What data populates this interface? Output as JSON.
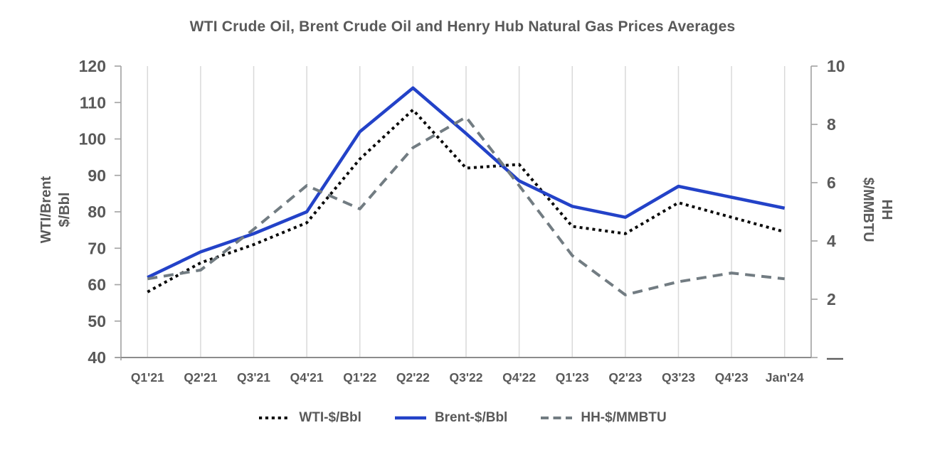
{
  "title": "WTI Crude Oil, Brent Crude Oil and Henry Hub Natural Gas Prices Averages",
  "chart_data": {
    "type": "line",
    "categories": [
      "Q1'21",
      "Q2'21",
      "Q3'21",
      "Q4'21",
      "Q1'22",
      "Q2'22",
      "Q3'22",
      "Q4'22",
      "Q1'23",
      "Q2'23",
      "Q3'23",
      "Q4'23",
      "Jan'24"
    ],
    "series": [
      {
        "name": "WTI-$/Bbl",
        "axis": "left",
        "style": "dotted",
        "color": "#0a0a0a",
        "values": [
          58,
          66,
          71,
          77,
          94.5,
          108,
          92,
          93,
          76,
          74,
          82.5,
          78.5,
          74.5
        ]
      },
      {
        "name": "Brent-$/Bbl",
        "axis": "left",
        "style": "solid",
        "color": "#2342c8",
        "values": [
          62,
          69,
          74,
          80,
          102,
          114,
          101.5,
          88.5,
          81.5,
          78.5,
          87,
          84,
          81
        ]
      },
      {
        "name": "HH-$/MMBTU",
        "axis": "right",
        "style": "dashed",
        "color": "#727c82",
        "values": [
          2.7,
          3.0,
          4.4,
          5.9,
          5.1,
          7.2,
          8.25,
          5.9,
          3.5,
          2.15,
          2.6,
          2.9,
          2.7
        ]
      }
    ],
    "left_axis": {
      "title_line1": "WTI/Brent",
      "title_line2": "$/Bbl",
      "min": 40,
      "max": 120,
      "tick_values": [
        40,
        50,
        60,
        70,
        80,
        90,
        100,
        110,
        120
      ],
      "tick_labels": [
        "40",
        "50",
        "60",
        "70",
        "80",
        "90",
        "100",
        "110",
        "120"
      ]
    },
    "right_axis": {
      "title_line1": "HH",
      "title_line2": "$/MMBTU",
      "min": 0,
      "max": 10,
      "tick_values": [
        0,
        2,
        4,
        6,
        8,
        10
      ],
      "tick_labels": [
        "—",
        "2",
        "4",
        "6",
        "8",
        "10"
      ]
    },
    "legend_position": "bottom",
    "grid": "vertical-only"
  },
  "colors": {
    "text": "#595959",
    "gridline": "#d9d9d9",
    "axis_line": "#a6a6a6",
    "x_axis_line": "#8c8c8c"
  }
}
